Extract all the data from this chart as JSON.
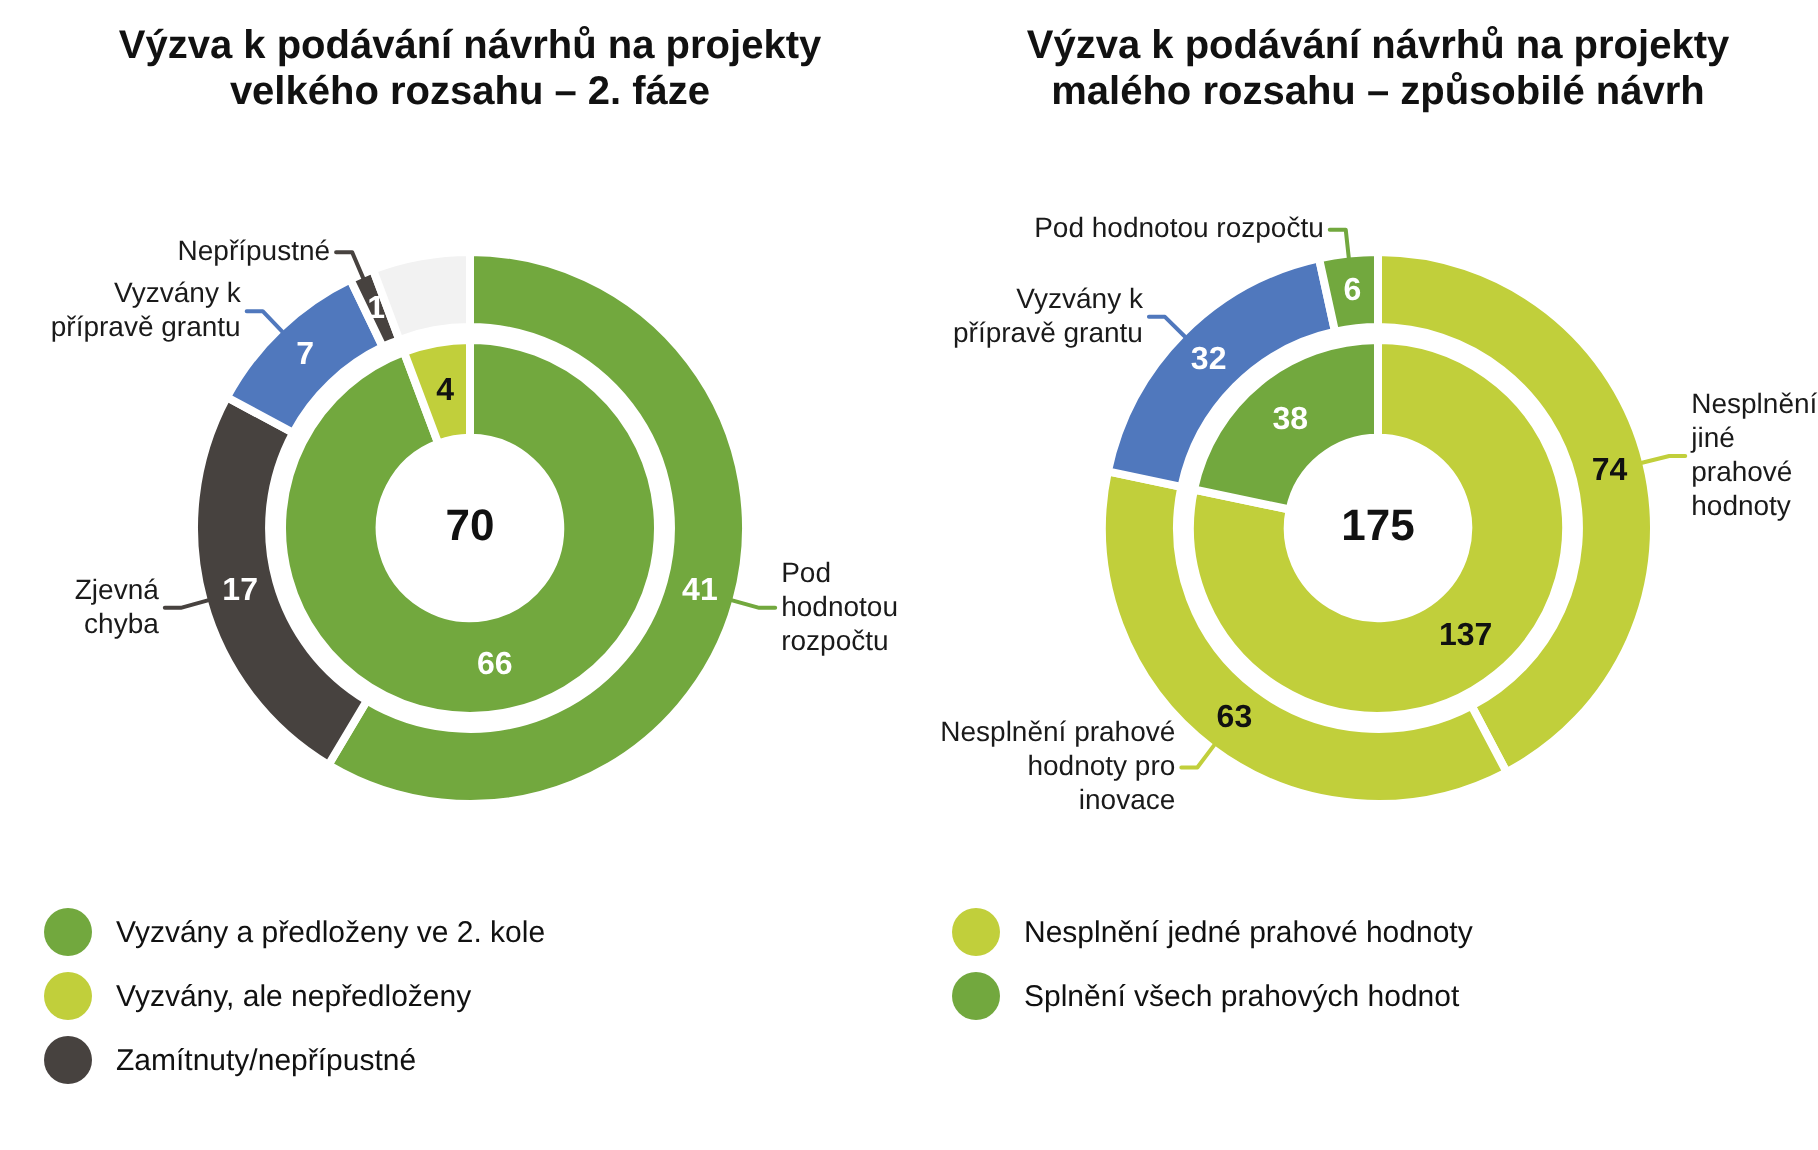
{
  "chart_data": [
    {
      "type": "donut",
      "title": "Výzva k podávání návrhů na projekty velkého rozsahu – 2. fáze",
      "categories": [
        "Pod hodnotou rozpočtu",
        "Zjevná chyba",
        "Vyzvány k přípravě grantu",
        "Nepřípustné",
        null
      ],
      "values": [
        41,
        17,
        7,
        1,
        4
      ],
      "colors": [
        "#72a83e",
        "#47423f",
        "#5078bd",
        "#47423f",
        "#f2f2f2"
      ],
      "value_labels": [
        "41",
        "17",
        "7",
        "1",
        null
      ]
    },
    {
      "type": "donut",
      "categories": [
        "Vyzvány a předloženy ve 2. kole",
        "Vyzvány, ale nepředloženy"
      ],
      "values": [
        66,
        4
      ],
      "colors": [
        "#72a83e",
        "#c1cf3b"
      ],
      "data_labels": true,
      "legend": "bottom",
      "annotations": [
        "70",
        "Zamítnuty/nepřípustné"
      ]
    },
    {
      "type": "donut",
      "title": "Výzva k podávání návrhů na projekty malého rozsahu – způsobilé návrh",
      "categories": [
        "Nesplnění jiné prahové hodnoty",
        "Nesplnění prahové hodnoty pro inovace",
        "Vyzvány k přípravě grantu",
        "Pod hodnotou rozpočtu"
      ],
      "values": [
        74,
        63,
        32,
        6
      ],
      "colors": [
        "#c1cf3b",
        "#c1cf3b",
        "#5078bd",
        "#72a83e"
      ],
      "data_labels": true
    },
    {
      "type": "donut",
      "categories": [
        "Nesplnění jedné prahové hodnoty",
        "Splnění všech prahových hodnot"
      ],
      "values": [
        137,
        38
      ],
      "colors": [
        "#c1cf3b",
        "#72a83e"
      ],
      "data_labels": true,
      "legend": "bottom",
      "annotations": [
        "175"
      ]
    }
  ]
}
